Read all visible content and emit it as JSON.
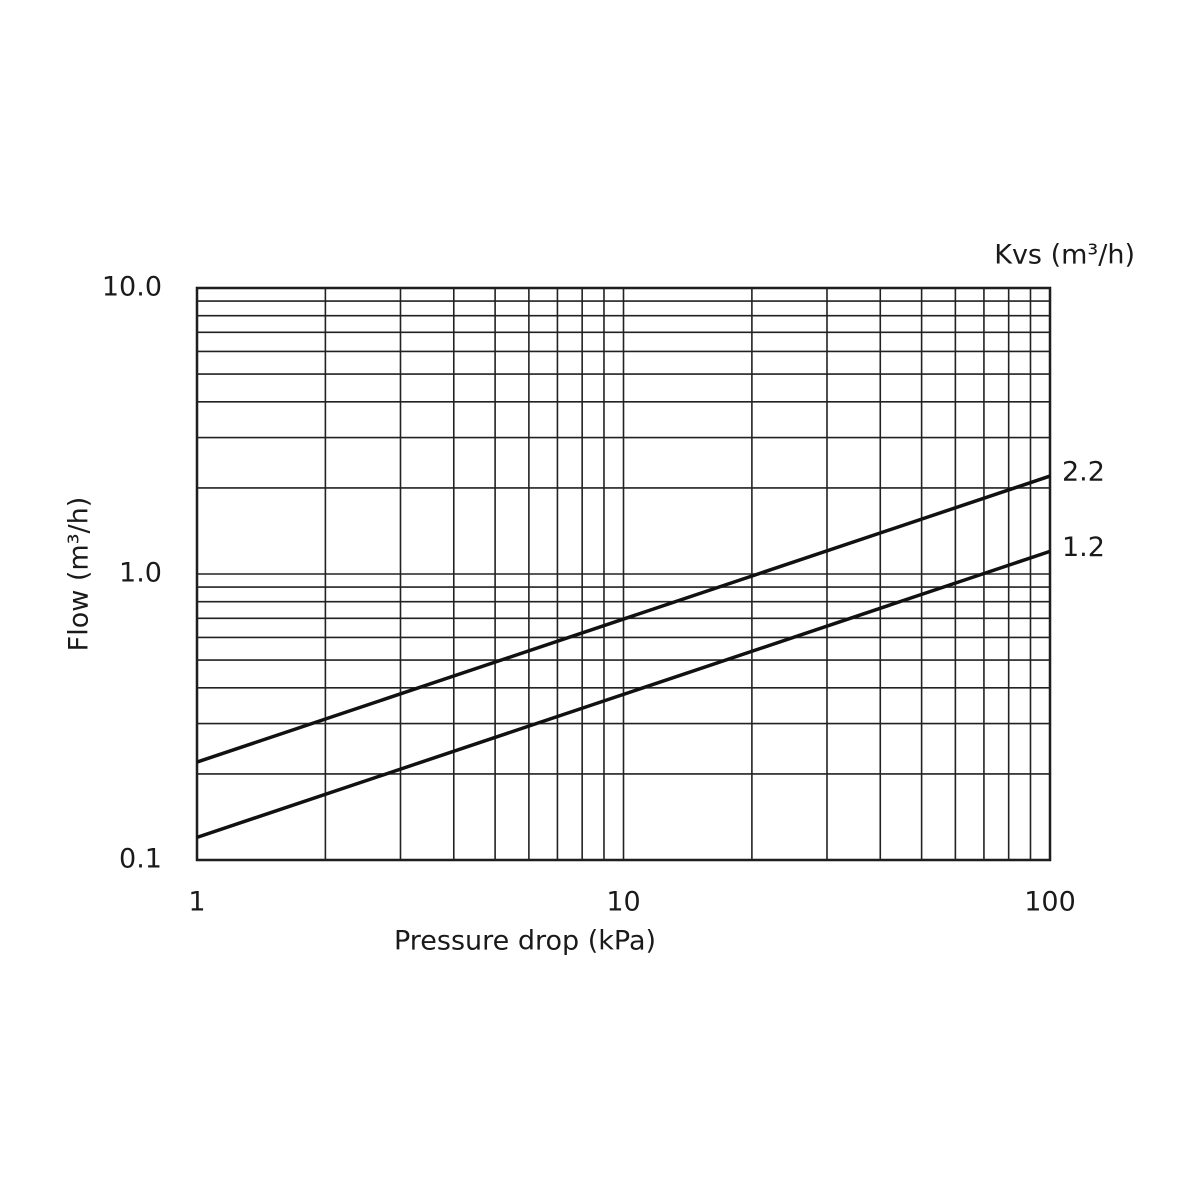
{
  "chart_data": {
    "type": "line",
    "x_label": "Pressure drop (kPa)",
    "y_label": "Flow  (m³/h)",
    "legend_title": "Kvs (m³/h)",
    "x_log": true,
    "y_log": true,
    "grid": true,
    "xlim": [
      1,
      100
    ],
    "ylim": [
      0.1,
      10
    ],
    "xticks": [
      1,
      10,
      100
    ],
    "yticks": [
      0.1,
      {
        "value": 1,
        "label": "1.0"
      },
      {
        "value": 10,
        "label": "10.0"
      }
    ],
    "x_minor_ticks": [
      2,
      3,
      4,
      5,
      6,
      7,
      8,
      9,
      20,
      30,
      40,
      50,
      60,
      70,
      80,
      90
    ],
    "y_minor_ticks": [
      0.2,
      0.3,
      0.4,
      0.5,
      0.6,
      0.7,
      0.8,
      0.9,
      2,
      3,
      4,
      5,
      6,
      7,
      8,
      9
    ],
    "x": [
      1,
      100
    ],
    "series": [
      {
        "name": "2.2",
        "color": "#111111",
        "values": [
          0.22,
          2.2
        ]
      },
      {
        "name": "1.2",
        "color": "#111111",
        "values": [
          0.12,
          1.2
        ]
      }
    ]
  }
}
